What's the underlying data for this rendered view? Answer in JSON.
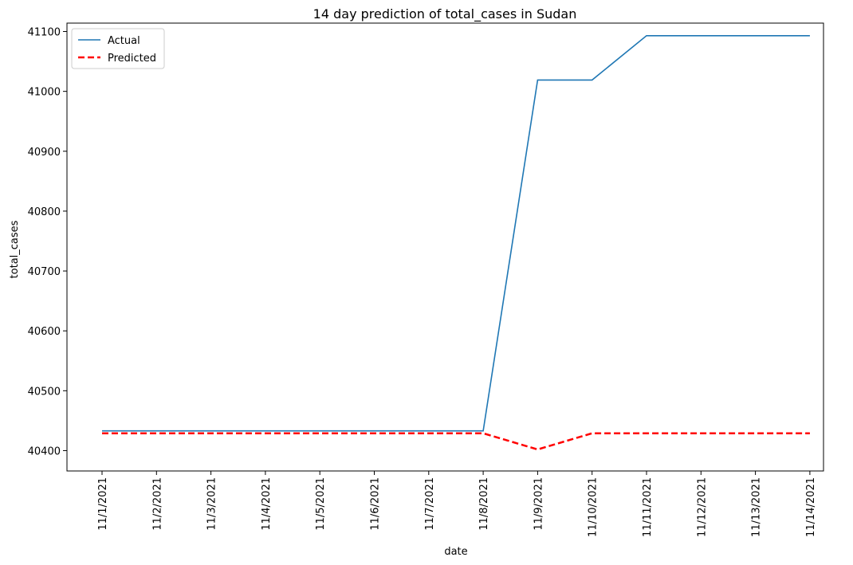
{
  "chart_data": {
    "type": "line",
    "title": "14 day prediction of total_cases in Sudan",
    "xlabel": "date",
    "ylabel": "total_cases",
    "categories": [
      "11/1/2021",
      "11/2/2021",
      "11/3/2021",
      "11/4/2021",
      "11/5/2021",
      "11/6/2021",
      "11/7/2021",
      "11/8/2021",
      "11/9/2021",
      "11/10/2021",
      "11/11/2021",
      "11/12/2021",
      "11/13/2021",
      "11/14/2021"
    ],
    "yticks": [
      40400,
      40500,
      40600,
      40700,
      40800,
      40900,
      41000,
      41100
    ],
    "ylim": [
      40366,
      41114
    ],
    "grid": false,
    "legend_position": "top-left",
    "series": [
      {
        "name": "Actual",
        "color": "#1f77b4",
        "style": "solid",
        "values": [
          40433,
          40433,
          40433,
          40433,
          40433,
          40433,
          40433,
          40433,
          41019,
          41019,
          41093,
          41093,
          41093,
          41093
        ]
      },
      {
        "name": "Predicted",
        "color": "#ff0000",
        "style": "dashed",
        "values": [
          40429,
          40429,
          40429,
          40429,
          40429,
          40429,
          40429,
          40429,
          40402,
          40429,
          40429,
          40429,
          40429,
          40429
        ]
      }
    ]
  }
}
